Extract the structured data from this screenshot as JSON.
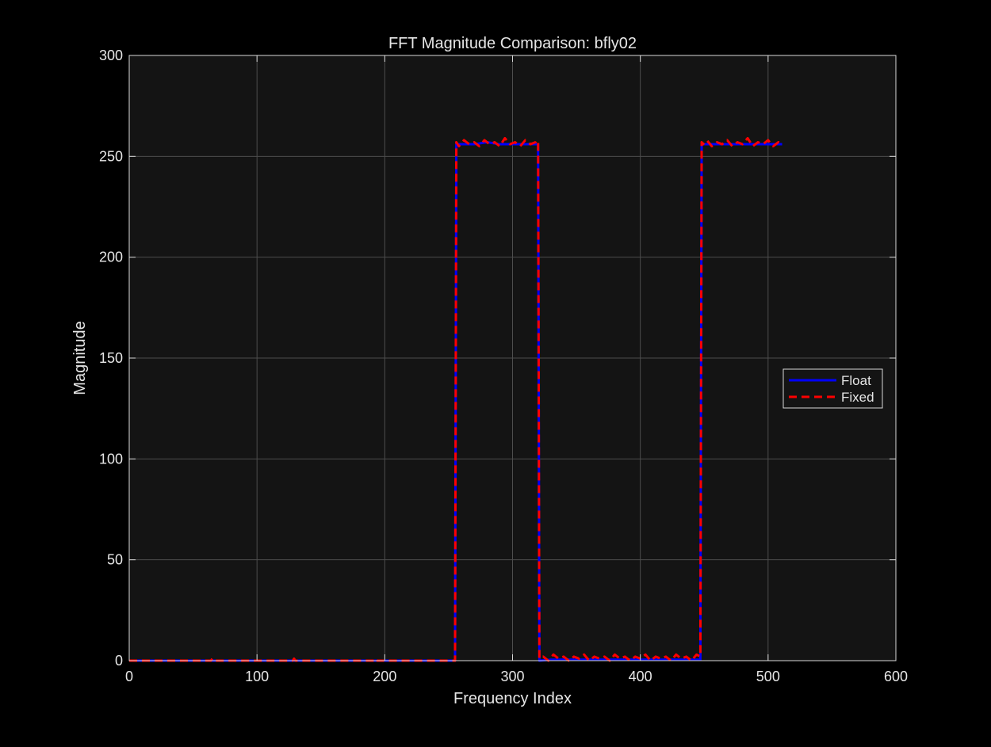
{
  "chart_data": {
    "type": "line",
    "title": "FFT Magnitude Comparison: bfly02",
    "xlabel": "Frequency Index",
    "ylabel": "Magnitude",
    "xlim": [
      0,
      600
    ],
    "ylim": [
      0,
      300
    ],
    "xticks": [
      0,
      100,
      200,
      300,
      400,
      500,
      600
    ],
    "yticks": [
      0,
      50,
      100,
      150,
      200,
      250,
      300
    ],
    "grid": true,
    "legend_position": "east",
    "colors": {
      "figure_bg": "#000000",
      "axes_bg": "#141414",
      "axes_edge": "#d9d9d9",
      "grid": "#4d4d4d",
      "text": "#e6e6e6",
      "legend_bg": "#141414"
    },
    "series": [
      {
        "name": "Float",
        "color": "#0000ff",
        "style": "solid",
        "x": [
          0,
          255,
          256,
          262,
          270,
          280,
          290,
          300,
          310,
          319,
          320,
          321,
          330,
          340,
          350,
          360,
          370,
          380,
          390,
          400,
          410,
          420,
          430,
          440,
          447,
          448,
          449,
          455,
          465,
          475,
          485,
          495,
          505,
          511
        ],
        "values": [
          0,
          0,
          256,
          256,
          256,
          257,
          256,
          256,
          256,
          256,
          256,
          0,
          0.5,
          0.5,
          0.5,
          0.5,
          0.5,
          0.5,
          0.5,
          0.5,
          0.5,
          0.5,
          0.5,
          0.5,
          0.5,
          256,
          256,
          256,
          256,
          256,
          256,
          256,
          256,
          256
        ]
      },
      {
        "name": "Fixed",
        "color": "#ff0000",
        "style": "dashed",
        "x": [
          0,
          64,
          65,
          66,
          128,
          129,
          130,
          192,
          193,
          194,
          255,
          256,
          258,
          262,
          266,
          270,
          274,
          278,
          282,
          286,
          290,
          294,
          298,
          302,
          306,
          310,
          314,
          318,
          319,
          320,
          321,
          324,
          328,
          332,
          336,
          340,
          344,
          348,
          352,
          356,
          360,
          364,
          368,
          372,
          376,
          380,
          384,
          388,
          392,
          396,
          400,
          404,
          408,
          412,
          416,
          420,
          424,
          428,
          432,
          436,
          440,
          444,
          447,
          448,
          449,
          452,
          456,
          460,
          464,
          468,
          472,
          476,
          480,
          484,
          488,
          492,
          496,
          500,
          504,
          508,
          511
        ],
        "values": [
          0,
          0,
          1,
          0,
          0,
          1,
          0,
          0,
          1,
          0,
          0,
          257,
          255,
          258,
          256,
          257,
          255,
          258,
          256,
          257,
          255,
          259,
          256,
          257,
          255,
          258,
          256,
          257,
          258,
          257,
          1,
          2,
          0,
          3,
          1,
          2,
          0,
          2,
          1,
          3,
          0,
          2,
          1,
          2,
          0,
          3,
          1,
          2,
          0,
          2,
          1,
          3,
          0,
          2,
          1,
          2,
          0,
          3,
          1,
          2,
          0,
          3,
          2,
          257,
          256,
          258,
          255,
          257,
          256,
          258,
          255,
          257,
          256,
          259,
          255,
          257,
          256,
          258,
          255,
          257,
          256
        ]
      }
    ]
  }
}
